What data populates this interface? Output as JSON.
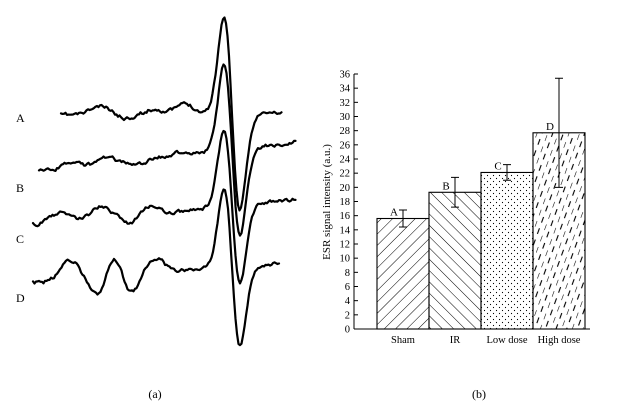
{
  "panel_a": {
    "caption": "(a)",
    "traces": [
      {
        "label": "A"
      },
      {
        "label": "B"
      },
      {
        "label": "C"
      },
      {
        "label": "D"
      }
    ]
  },
  "panel_b": {
    "caption": "(b)"
  },
  "chart_data": [
    {
      "type": "line",
      "panel": "(a)",
      "title": "",
      "xlabel": "",
      "ylabel": "",
      "grid": false,
      "axes_visible": false,
      "series": [
        {
          "name": "A"
        },
        {
          "name": "B"
        },
        {
          "name": "C"
        },
        {
          "name": "D"
        }
      ]
    },
    {
      "type": "bar",
      "panel": "(b)",
      "title": "",
      "xlabel": "",
      "ylabel": "ESR signal intensity (a.u.)",
      "ylim": [
        0,
        36
      ],
      "yticks": [
        0,
        2,
        4,
        6,
        8,
        10,
        12,
        14,
        16,
        18,
        20,
        22,
        24,
        26,
        28,
        30,
        32,
        34,
        36
      ],
      "grid": false,
      "categories": [
        "Sham",
        "IR",
        "Low dose",
        "High dose"
      ],
      "values": [
        15.6,
        19.3,
        22.1,
        27.7
      ],
      "errors": [
        1.2,
        2.1,
        1.1,
        7.7
      ],
      "bar_labels": [
        "A",
        "B",
        "C",
        "D"
      ],
      "hatches": [
        "forward-diagonal",
        "back-diagonal",
        "dots",
        "dashed-diagonal"
      ]
    }
  ]
}
